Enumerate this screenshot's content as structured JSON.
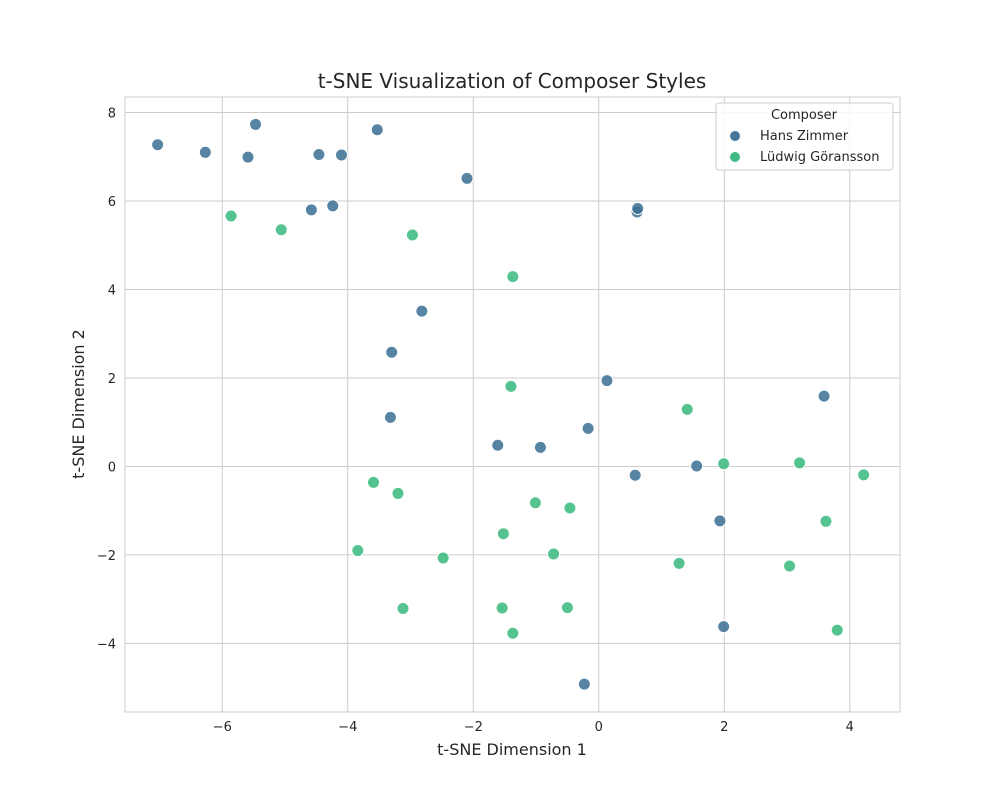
{
  "chart_data": {
    "type": "scatter",
    "title": "t-SNE Visualization of Composer Styles",
    "xlabel": "t-SNE Dimension 1",
    "ylabel": "t-SNE Dimension 2",
    "xlim": [
      -7.55,
      4.8
    ],
    "ylim": [
      -5.55,
      8.35
    ],
    "xticks": [
      -6,
      -4,
      -2,
      0,
      2,
      4
    ],
    "yticks": [
      -4,
      -2,
      0,
      2,
      4,
      6,
      8
    ],
    "xtick_labels": [
      "−6",
      "−4",
      "−2",
      "0",
      "2",
      "4"
    ],
    "ytick_labels": [
      "−4",
      "−2",
      "0",
      "2",
      "4",
      "6",
      "8"
    ],
    "grid": true,
    "legend": {
      "title": "Composer",
      "placement": "top-right"
    },
    "series": [
      {
        "name": "Hans Zimmer",
        "color": "#3b6e93",
        "points": [
          [
            -7.03,
            7.27
          ],
          [
            -6.27,
            7.1
          ],
          [
            -5.47,
            7.73
          ],
          [
            -5.59,
            6.99
          ],
          [
            -4.46,
            7.05
          ],
          [
            -4.1,
            7.04
          ],
          [
            -3.53,
            7.61
          ],
          [
            -2.1,
            6.51
          ],
          [
            -4.58,
            5.8
          ],
          [
            -4.24,
            5.89
          ],
          [
            0.61,
            5.75
          ],
          [
            0.62,
            5.83
          ],
          [
            -2.82,
            3.51
          ],
          [
            -3.3,
            2.58
          ],
          [
            0.13,
            1.94
          ],
          [
            3.59,
            1.59
          ],
          [
            -3.32,
            1.11
          ],
          [
            -1.61,
            0.48
          ],
          [
            -0.93,
            0.43
          ],
          [
            -0.17,
            0.86
          ],
          [
            0.58,
            -0.2
          ],
          [
            1.56,
            0.01
          ],
          [
            1.93,
            -1.23
          ],
          [
            1.99,
            -3.62
          ],
          [
            -0.23,
            -4.92
          ]
        ]
      },
      {
        "name": "Lüdwig Göransson",
        "color": "#36b87b",
        "points": [
          [
            -5.86,
            5.66
          ],
          [
            -5.06,
            5.35
          ],
          [
            -2.97,
            5.23
          ],
          [
            -1.37,
            4.29
          ],
          [
            -1.4,
            1.81
          ],
          [
            1.41,
            1.29
          ],
          [
            1.99,
            0.06
          ],
          [
            3.2,
            0.08
          ],
          [
            4.22,
            -0.19
          ],
          [
            -3.59,
            -0.36
          ],
          [
            -3.2,
            -0.61
          ],
          [
            -1.01,
            -0.82
          ],
          [
            -0.46,
            -0.94
          ],
          [
            -1.52,
            -1.52
          ],
          [
            3.62,
            -1.24
          ],
          [
            -3.84,
            -1.9
          ],
          [
            -2.48,
            -2.07
          ],
          [
            -0.72,
            -1.98
          ],
          [
            1.28,
            -2.19
          ],
          [
            3.04,
            -2.25
          ],
          [
            -3.12,
            -3.21
          ],
          [
            -1.54,
            -3.2
          ],
          [
            -0.5,
            -3.19
          ],
          [
            -1.37,
            -3.77
          ],
          [
            3.8,
            -3.7
          ]
        ]
      }
    ]
  }
}
